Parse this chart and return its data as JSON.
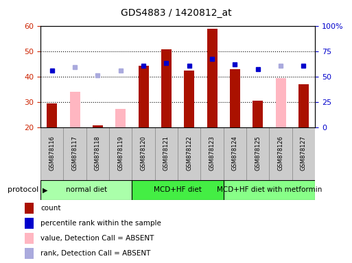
{
  "title": "GDS4883 / 1420812_at",
  "samples": [
    "GSM878116",
    "GSM878117",
    "GSM878118",
    "GSM878119",
    "GSM878120",
    "GSM878121",
    "GSM878122",
    "GSM878123",
    "GSM878124",
    "GSM878125",
    "GSM878126",
    "GSM878127"
  ],
  "count_values": [
    29.5,
    null,
    21.0,
    null,
    44.5,
    51.0,
    42.5,
    59.0,
    43.0,
    30.5,
    null,
    37.0
  ],
  "absent_value": [
    null,
    34.0,
    null,
    27.5,
    null,
    null,
    null,
    null,
    null,
    null,
    39.5,
    null
  ],
  "percentile_present": [
    42.5,
    null,
    null,
    null,
    44.5,
    45.5,
    44.5,
    47.0,
    45.0,
    43.0,
    null,
    44.5
  ],
  "percentile_absent": [
    null,
    44.0,
    40.5,
    42.5,
    null,
    null,
    null,
    null,
    null,
    null,
    44.5,
    null
  ],
  "ylim": [
    20,
    60
  ],
  "yticks": [
    20,
    30,
    40,
    50,
    60
  ],
  "y2lim": [
    0,
    100
  ],
  "y2ticks": [
    0,
    25,
    50,
    75,
    100
  ],
  "y2ticklabels": [
    "0",
    "25",
    "50",
    "75",
    "100%"
  ],
  "protocol_groups": [
    {
      "label": "normal diet",
      "start": 0,
      "end": 3,
      "color": "#AAFFAA"
    },
    {
      "label": "MCD+HF diet",
      "start": 4,
      "end": 7,
      "color": "#44EE44"
    },
    {
      "label": "MCD+HF diet with metformin",
      "start": 8,
      "end": 11,
      "color": "#88FF88"
    }
  ],
  "count_color": "#AA1100",
  "absent_color": "#FFB6C1",
  "percentile_present_color": "#0000CC",
  "percentile_absent_color": "#AAAADD",
  "legend_items": [
    {
      "label": "count",
      "color": "#AA1100"
    },
    {
      "label": "percentile rank within the sample",
      "color": "#0000CC"
    },
    {
      "label": "value, Detection Call = ABSENT",
      "color": "#FFB6C1"
    },
    {
      "label": "rank, Detection Call = ABSENT",
      "color": "#AAAADD"
    }
  ],
  "protocol_label": "protocol",
  "fig_bg": "#FFFFFF",
  "plot_bg": "#FFFFFF",
  "tick_label_color_left": "#CC2200",
  "tick_label_color_right": "#0000CC",
  "sample_box_color": "#CCCCCC",
  "sample_box_edge": "#888888"
}
